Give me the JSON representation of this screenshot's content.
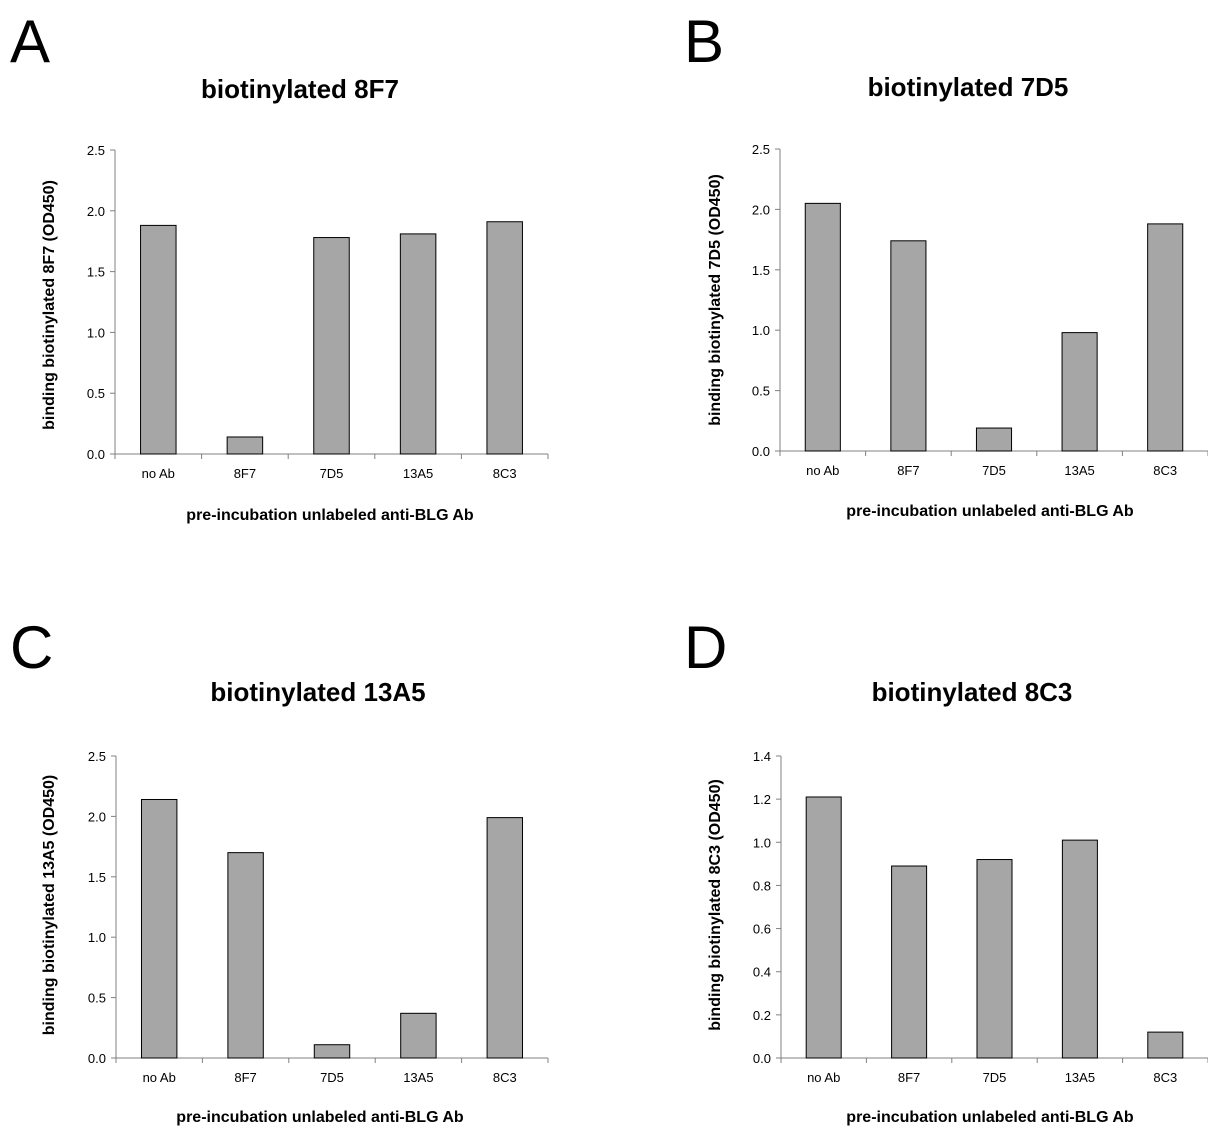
{
  "chart_data": [
    {
      "panel": "A",
      "type": "bar",
      "title": "biotinylated 8F7",
      "xlabel": "pre-incubation unlabeled anti-BLG Ab",
      "ylabel": "binding biotinylated 8F7 (OD450)",
      "categories": [
        "no Ab",
        "8F7",
        "7D5",
        "13A5",
        "8C3"
      ],
      "values": [
        1.88,
        0.14,
        1.78,
        1.81,
        1.91
      ],
      "ylim": [
        0,
        2.5
      ],
      "yticks": [
        "0.0",
        "0.5",
        "1.0",
        "1.5",
        "2.0",
        "2.5"
      ],
      "ystep": 0.5,
      "grid": false,
      "bar_color": "#a6a6a6"
    },
    {
      "panel": "B",
      "type": "bar",
      "title": "biotinylated 7D5",
      "xlabel": "pre-incubation unlabeled anti-BLG Ab",
      "ylabel": "binding biotinylated  7D5 (OD450)",
      "categories": [
        "no Ab",
        "8F7",
        "7D5",
        "13A5",
        "8C3"
      ],
      "values": [
        2.05,
        1.74,
        0.19,
        0.98,
        1.88
      ],
      "ylim": [
        0,
        2.5
      ],
      "yticks": [
        "0.0",
        "0.5",
        "1.0",
        "1.5",
        "2.0",
        "2.5"
      ],
      "ystep": 0.5,
      "grid": false,
      "bar_color": "#a6a6a6"
    },
    {
      "panel": "C",
      "type": "bar",
      "title": "biotinylated  13A5",
      "xlabel": "pre-incubation unlabeled anti-BLG Ab",
      "ylabel": "binding biotinylated  13A5 (OD450)",
      "categories": [
        "no Ab",
        "8F7",
        "7D5",
        "13A5",
        "8C3"
      ],
      "values": [
        2.14,
        1.7,
        0.11,
        0.37,
        1.99
      ],
      "ylim": [
        0,
        2.5
      ],
      "yticks": [
        "0.0",
        "0.5",
        "1.0",
        "1.5",
        "2.0",
        "2.5"
      ],
      "ystep": 0.5,
      "grid": false,
      "bar_color": "#a6a6a6"
    },
    {
      "panel": "D",
      "type": "bar",
      "title": "biotinylated  8C3",
      "xlabel": "pre-incubation unlabeled anti-BLG Ab",
      "ylabel": "binding biotinylated 8C3 (OD450)",
      "categories": [
        "no Ab",
        "8F7",
        "7D5",
        "13A5",
        "8C3"
      ],
      "values": [
        1.21,
        0.89,
        0.92,
        1.01,
        0.12
      ],
      "ylim": [
        0,
        1.4
      ],
      "yticks": [
        "0.0",
        "0.2",
        "0.4",
        "0.6",
        "0.8",
        "1.0",
        "1.2",
        "1.4"
      ],
      "ystep": 0.2,
      "grid": false,
      "bar_color": "#a6a6a6"
    }
  ]
}
